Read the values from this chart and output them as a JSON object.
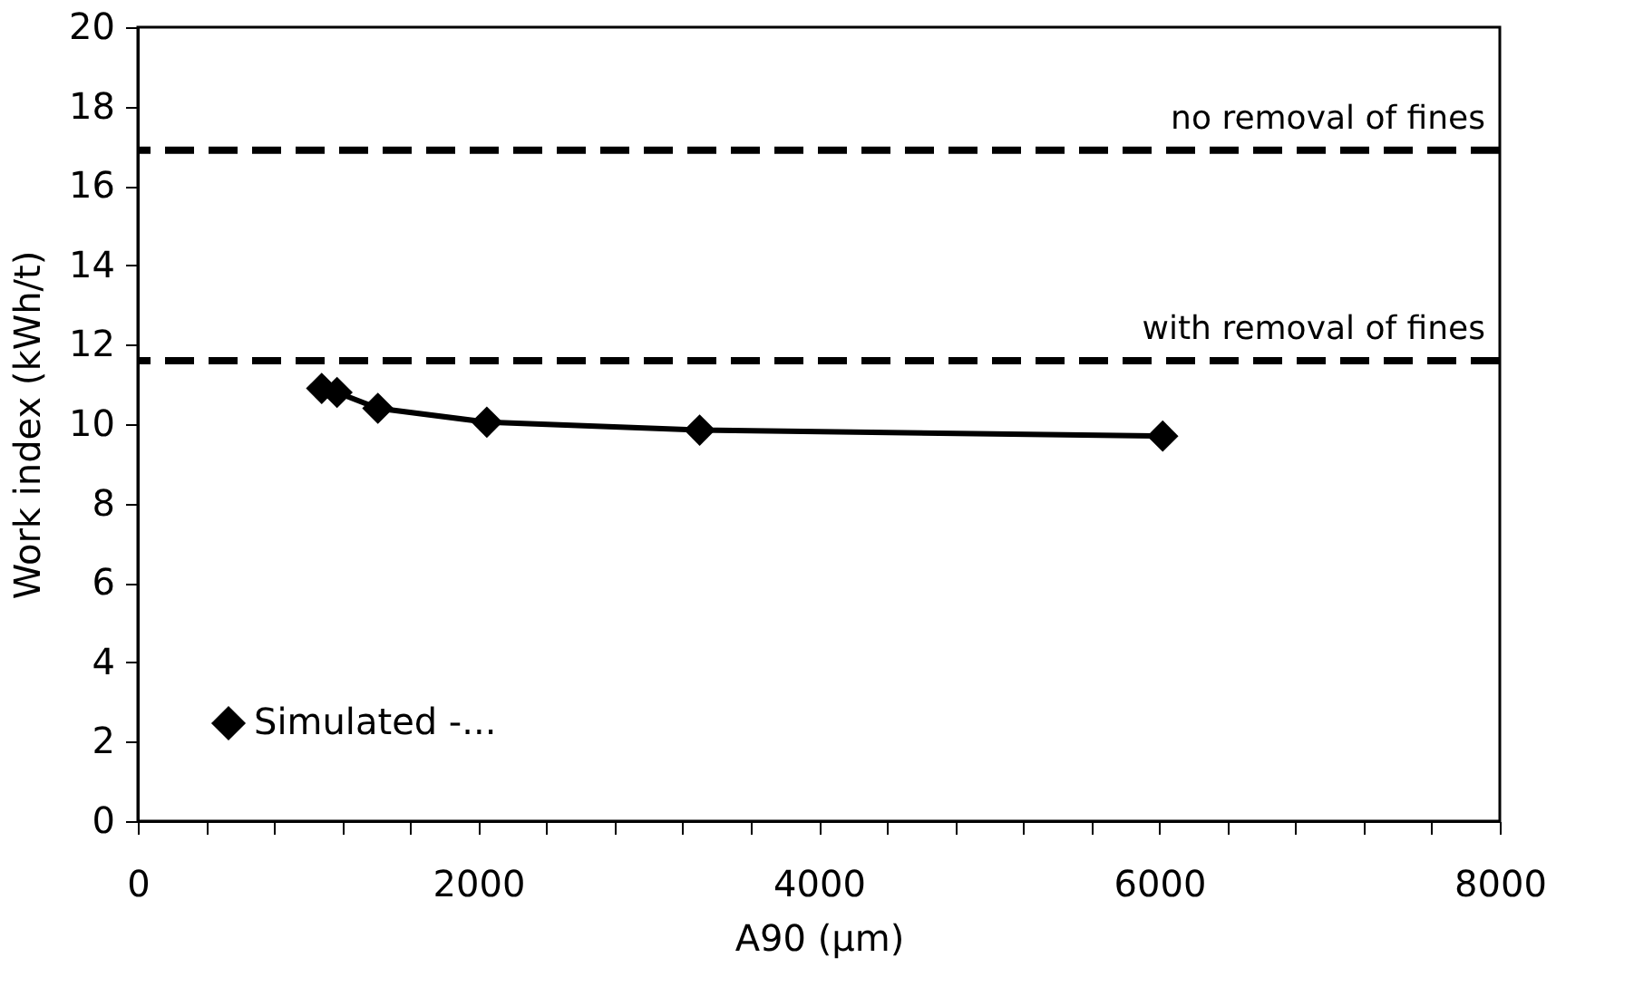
{
  "chart_data": {
    "type": "line",
    "xlabel": "A90 (µm)",
    "ylabel": "Work index (kWh/t)",
    "x": [
      1080,
      1170,
      1410,
      2050,
      3300,
      6020
    ],
    "series": [
      {
        "name": "Simulated -...",
        "color": "#000000",
        "values": [
          10.9,
          10.8,
          10.4,
          10.05,
          9.85,
          9.7
        ]
      }
    ],
    "xlim": [
      0,
      8000
    ],
    "ylim": [
      0,
      20
    ],
    "xticks": [
      0,
      {
        "value": 400,
        "label": null
      },
      {
        "value": 800,
        "label": null
      },
      {
        "value": 1200,
        "label": null
      },
      {
        "value": 1600,
        "label": null
      },
      2000,
      {
        "value": 2400,
        "label": null
      },
      {
        "value": 2800,
        "label": null
      },
      {
        "value": 3200,
        "label": null
      },
      {
        "value": 3600,
        "label": null
      },
      4000,
      {
        "value": 4400,
        "label": null
      },
      {
        "value": 4800,
        "label": null
      },
      {
        "value": 5200,
        "label": null
      },
      {
        "value": 5600,
        "label": null
      },
      6000,
      {
        "value": 6400,
        "label": null
      },
      {
        "value": 6800,
        "label": null
      },
      {
        "value": 7200,
        "label": null
      },
      {
        "value": 7600,
        "label": null
      },
      8000
    ],
    "yticks": [
      0,
      2,
      4,
      6,
      8,
      10,
      12,
      14,
      16,
      18,
      20
    ],
    "ref_lines": [
      {
        "axis": "y",
        "value": 16.9,
        "label": "no removal of  fines",
        "color": "#000000",
        "line_style": "dashed"
      },
      {
        "axis": "y",
        "value": 11.6,
        "label": "with removal of fines",
        "color": "#000000",
        "line_style": "dashed"
      }
    ],
    "marker": "diamond",
    "line_style": "solid",
    "grid": false,
    "legend": "bottom left"
  }
}
